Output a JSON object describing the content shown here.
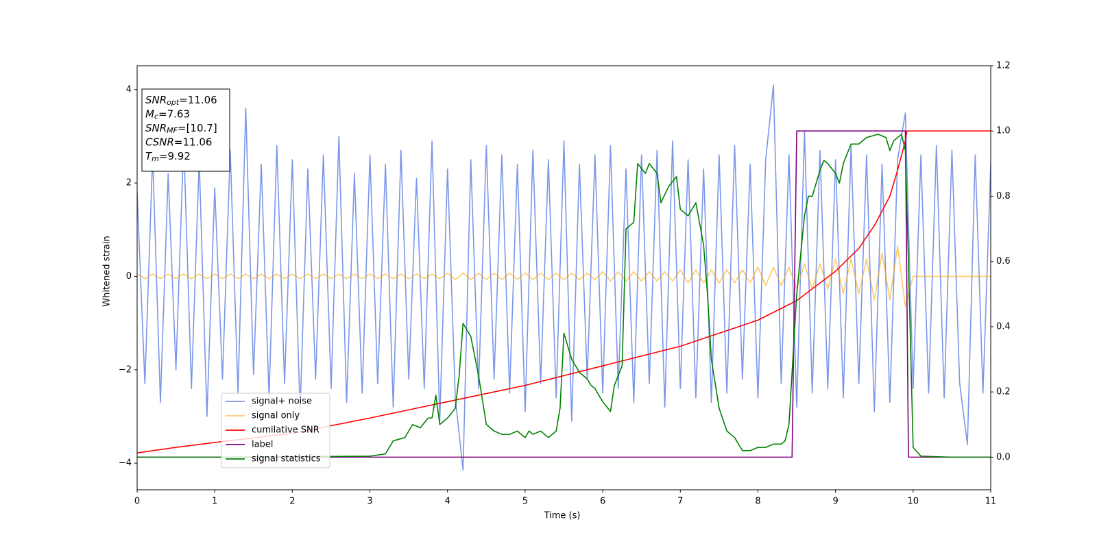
{
  "chart_data": {
    "type": "line",
    "xlabel": "Time (s)",
    "ylabel": "Whitened strain",
    "xlim": [
      0,
      11
    ],
    "xticks": [
      0,
      1,
      2,
      3,
      4,
      5,
      6,
      7,
      8,
      9,
      10,
      11
    ],
    "ylim": [
      -4.57,
      4.51
    ],
    "yticks": [
      {
        "value": -4,
        "label": "−4"
      },
      {
        "value": -2,
        "label": "−2"
      },
      0,
      2,
      4
    ],
    "y2lim": [
      -0.1,
      1.2
    ],
    "y2ticks": [
      {
        "value": 0,
        "label": "0.0"
      },
      {
        "value": 0.2,
        "label": "0.2"
      },
      {
        "value": 0.4,
        "label": "0.4"
      },
      {
        "value": 0.6,
        "label": "0.6"
      },
      {
        "value": 0.8,
        "label": "0.8"
      },
      {
        "value": 1.0,
        "label": "1.0"
      },
      {
        "value": 1.2,
        "label": "1.2"
      }
    ],
    "legend": "lower left",
    "annotation": [
      {
        "main": "SNR",
        "sub": "opt",
        "rest": "=11.06"
      },
      {
        "main": "M",
        "sub": "c",
        "rest": "=7.63"
      },
      {
        "main": "SNR",
        "sub": "MF",
        "rest": "=[10.7]"
      },
      {
        "main": "CSNR",
        "rest": "=11.06"
      },
      {
        "main": "T",
        "sub": "m",
        "rest": "=9.92"
      }
    ],
    "series": [
      {
        "name": "signal+ noise",
        "color": "#4169e1",
        "alpha": 0.7,
        "x": [
          0,
          0.1,
          0.2,
          0.3,
          0.4,
          0.5,
          0.6,
          0.7,
          0.8,
          0.9,
          1,
          1.1,
          1.2,
          1.3,
          1.4,
          1.5,
          1.6,
          1.7,
          1.8,
          1.9,
          2,
          2.1,
          2.2,
          2.3,
          2.4,
          2.5,
          2.6,
          2.7,
          2.8,
          2.9,
          3,
          3.1,
          3.2,
          3.3,
          3.4,
          3.5,
          3.6,
          3.7,
          3.8,
          3.9,
          4,
          4.1,
          4.2,
          4.3,
          4.4,
          4.5,
          4.6,
          4.7,
          4.8,
          4.9,
          5,
          5.1,
          5.2,
          5.3,
          5.4,
          5.5,
          5.6,
          5.7,
          5.8,
          5.9,
          6,
          6.1,
          6.2,
          6.3,
          6.4,
          6.5,
          6.6,
          6.7,
          6.8,
          6.9,
          7,
          7.1,
          7.2,
          7.3,
          7.4,
          7.5,
          7.6,
          7.7,
          7.8,
          7.9,
          8,
          8.1,
          8.2,
          8.3,
          8.4,
          8.5,
          8.6,
          8.7,
          8.8,
          8.9,
          9,
          9.1,
          9.2,
          9.3,
          9.4,
          9.5,
          9.6,
          9.7,
          9.8,
          9.9,
          10,
          10.1,
          10.2,
          10.3,
          10.4,
          10.5,
          10.6,
          10.7,
          10.8,
          10.9,
          11
        ],
        "values": [
          1.8,
          -2.3,
          2.6,
          -2.7,
          2.2,
          -2.0,
          2.9,
          -2.4,
          2.5,
          -3.0,
          1.9,
          -2.2,
          2.7,
          -2.5,
          3.6,
          -2.1,
          2.4,
          -2.6,
          2.8,
          -2.3,
          2.5,
          -2.9,
          2.3,
          -2.2,
          2.6,
          -2.4,
          3.0,
          -2.7,
          2.2,
          -2.5,
          2.6,
          -2.3,
          2.4,
          -2.8,
          2.7,
          -2.2,
          2.1,
          -2.4,
          2.9,
          -3.1,
          2.3,
          -2.6,
          -4.15,
          2.5,
          -2.4,
          2.8,
          -2.2,
          2.6,
          -2.5,
          2.4,
          -2.9,
          2.7,
          -2.3,
          2.5,
          -2.6,
          2.9,
          -3.1,
          2.4,
          -2.2,
          2.6,
          -2.5,
          2.8,
          -2.4,
          2.3,
          -2.7,
          2.6,
          -2.3,
          2.7,
          -2.8,
          2.9,
          -2.4,
          2.5,
          -2.6,
          2.3,
          -2.7,
          2.6,
          -2.5,
          2.8,
          -2.2,
          2.4,
          -2.6,
          2.5,
          4.1,
          -2.3,
          2.6,
          -2.8,
          3.1,
          -2.5,
          2.7,
          -2.4,
          2.5,
          -2.6,
          2.8,
          -2.3,
          2.6,
          -2.9,
          2.4,
          -2.7,
          2.5,
          3.5,
          -2.4,
          2.6,
          -2.5,
          2.8,
          -2.6,
          2.7,
          -2.3,
          -3.6,
          2.6,
          -2.5,
          2.4
        ]
      },
      {
        "name": "signal only",
        "color": "#ffa500",
        "alpha": 0.6,
        "x": [
          0,
          0.1,
          0.2,
          0.3,
          0.4,
          0.5,
          0.6,
          0.7,
          0.8,
          0.9,
          1,
          1.1,
          1.2,
          1.3,
          1.4,
          1.5,
          1.6,
          1.7,
          1.8,
          1.9,
          2,
          2.1,
          2.2,
          2.3,
          2.4,
          2.5,
          2.6,
          2.7,
          2.8,
          2.9,
          3,
          3.1,
          3.2,
          3.3,
          3.4,
          3.5,
          3.6,
          3.7,
          3.8,
          3.9,
          4,
          4.1,
          4.2,
          4.3,
          4.4,
          4.5,
          4.6,
          4.7,
          4.8,
          4.9,
          5,
          5.1,
          5.2,
          5.3,
          5.4,
          5.5,
          5.6,
          5.7,
          5.8,
          5.9,
          6,
          6.1,
          6.2,
          6.3,
          6.4,
          6.5,
          6.6,
          6.7,
          6.8,
          6.9,
          7,
          7.1,
          7.2,
          7.3,
          7.4,
          7.5,
          7.6,
          7.7,
          7.8,
          7.9,
          8,
          8.1,
          8.2,
          8.3,
          8.4,
          8.5,
          8.6,
          8.7,
          8.8,
          8.9,
          9,
          9.1,
          9.2,
          9.3,
          9.4,
          9.5,
          9.6,
          9.7,
          9.8,
          9.9,
          10,
          10.1,
          10.2,
          10.3,
          10.4,
          10.5,
          10.6,
          10.7,
          10.8,
          10.9,
          11
        ],
        "values": [
          0.05,
          -0.05,
          0.05,
          -0.05,
          0.05,
          -0.05,
          0.05,
          -0.05,
          0.05,
          -0.05,
          0.05,
          -0.05,
          0.05,
          -0.05,
          0.05,
          -0.05,
          0.05,
          -0.05,
          0.05,
          -0.05,
          0.05,
          -0.05,
          0.05,
          -0.05,
          0.05,
          -0.05,
          0.05,
          -0.05,
          0.05,
          -0.05,
          0.05,
          -0.05,
          0.05,
          -0.05,
          0.05,
          -0.05,
          0.05,
          -0.05,
          0.05,
          -0.05,
          0.07,
          -0.07,
          0.07,
          -0.07,
          0.07,
          -0.07,
          0.07,
          -0.07,
          0.07,
          -0.07,
          0.07,
          -0.07,
          0.07,
          -0.07,
          0.07,
          -0.07,
          0.07,
          -0.07,
          0.07,
          -0.07,
          0.1,
          -0.1,
          0.1,
          -0.1,
          0.1,
          -0.1,
          0.1,
          -0.1,
          0.1,
          -0.1,
          0.14,
          -0.14,
          0.14,
          -0.14,
          0.14,
          -0.14,
          0.14,
          -0.14,
          0.14,
          -0.14,
          0.2,
          -0.2,
          0.2,
          -0.2,
          0.2,
          -0.27,
          0.27,
          -0.27,
          0.27,
          -0.27,
          0.37,
          -0.37,
          0.37,
          -0.37,
          0.37,
          -0.5,
          0.5,
          -0.5,
          0.65,
          -0.65,
          0,
          0,
          0,
          0,
          0,
          0,
          0,
          0,
          0,
          0,
          0
        ]
      },
      {
        "name": "cumilative SNR",
        "color": "#ff0000",
        "axis": "y2",
        "x": [
          0,
          0.5,
          1,
          2,
          3,
          4,
          5,
          6,
          7,
          7.5,
          8,
          8.5,
          9,
          9.3,
          9.5,
          9.7,
          9.8,
          9.9,
          9.92,
          10,
          11
        ],
        "values": [
          0.013,
          0.03,
          0.045,
          0.073,
          0.12,
          0.17,
          0.22,
          0.28,
          0.34,
          0.38,
          0.42,
          0.48,
          0.57,
          0.64,
          0.71,
          0.8,
          0.88,
          0.97,
          1.0,
          1.0,
          1.0
        ]
      },
      {
        "name": "label",
        "color": "#800080",
        "axis": "y2",
        "x": [
          0,
          8.44,
          8.5,
          9.9,
          9.94,
          11
        ],
        "values": [
          0,
          0,
          1,
          1,
          0,
          0
        ]
      },
      {
        "name": "signal statistics",
        "color": "#008000",
        "axis": "y2",
        "x": [
          0,
          1,
          3.0,
          3.2,
          3.3,
          3.45,
          3.55,
          3.65,
          3.75,
          3.8,
          3.85,
          3.9,
          4.0,
          4.1,
          4.15,
          4.2,
          4.3,
          4.4,
          4.5,
          4.6,
          4.7,
          4.8,
          4.9,
          5.0,
          5.05,
          5.1,
          5.2,
          5.3,
          5.4,
          5.45,
          5.5,
          5.6,
          5.7,
          5.8,
          5.85,
          5.9,
          6.0,
          6.1,
          6.15,
          6.25,
          6.3,
          6.4,
          6.45,
          6.55,
          6.6,
          6.7,
          6.75,
          6.85,
          6.95,
          7.0,
          7.1,
          7.2,
          7.3,
          7.35,
          7.4,
          7.5,
          7.6,
          7.7,
          7.8,
          7.9,
          8.0,
          8.1,
          8.2,
          8.3,
          8.35,
          8.4,
          8.45,
          8.5,
          8.6,
          8.65,
          8.7,
          8.8,
          8.85,
          8.9,
          9.0,
          9.05,
          9.1,
          9.2,
          9.3,
          9.4,
          9.55,
          9.65,
          9.7,
          9.75,
          9.85,
          9.9,
          9.95,
          10.0,
          10.1,
          10.5,
          11
        ],
        "values": [
          0,
          0,
          0.003,
          0.01,
          0.05,
          0.06,
          0.1,
          0.09,
          0.12,
          0.12,
          0.19,
          0.1,
          0.12,
          0.15,
          0.25,
          0.41,
          0.37,
          0.25,
          0.1,
          0.08,
          0.07,
          0.07,
          0.08,
          0.06,
          0.08,
          0.07,
          0.08,
          0.06,
          0.08,
          0.15,
          0.38,
          0.3,
          0.26,
          0.24,
          0.22,
          0.21,
          0.17,
          0.14,
          0.22,
          0.28,
          0.7,
          0.72,
          0.9,
          0.87,
          0.9,
          0.87,
          0.78,
          0.83,
          0.86,
          0.76,
          0.74,
          0.78,
          0.65,
          0.5,
          0.3,
          0.15,
          0.08,
          0.06,
          0.02,
          0.02,
          0.03,
          0.03,
          0.04,
          0.04,
          0.05,
          0.1,
          0.3,
          0.5,
          0.74,
          0.8,
          0.8,
          0.88,
          0.91,
          0.9,
          0.87,
          0.84,
          0.9,
          0.96,
          0.96,
          0.98,
          0.99,
          0.98,
          0.94,
          0.97,
          0.99,
          0.94,
          0.5,
          0.03,
          0.003,
          0,
          0
        ]
      }
    ]
  }
}
